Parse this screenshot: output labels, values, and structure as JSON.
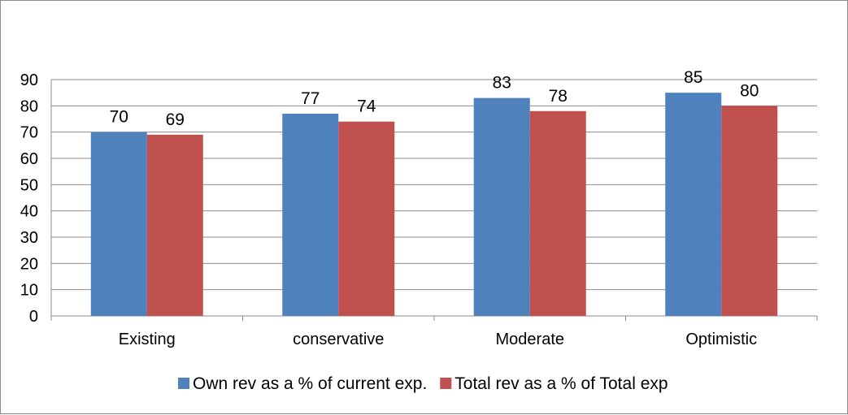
{
  "chart_data": {
    "type": "bar",
    "categories": [
      "Existing",
      "conservative",
      "Moderate",
      "Optimistic"
    ],
    "series": [
      {
        "name": "Own rev as a % of current exp.",
        "color": "#4F81BD",
        "values": [
          70,
          77,
          83,
          85
        ]
      },
      {
        "name": "Total rev as a % of Total exp",
        "color": "#C0504D",
        "values": [
          69,
          74,
          78,
          80
        ]
      }
    ],
    "yticks": [
      "0",
      "10",
      "20",
      "30",
      "40",
      "50",
      "60",
      "70",
      "80",
      "90"
    ],
    "ylim": [
      0,
      90
    ],
    "grid": true,
    "legend_position": "bottom",
    "data_labels": true
  }
}
